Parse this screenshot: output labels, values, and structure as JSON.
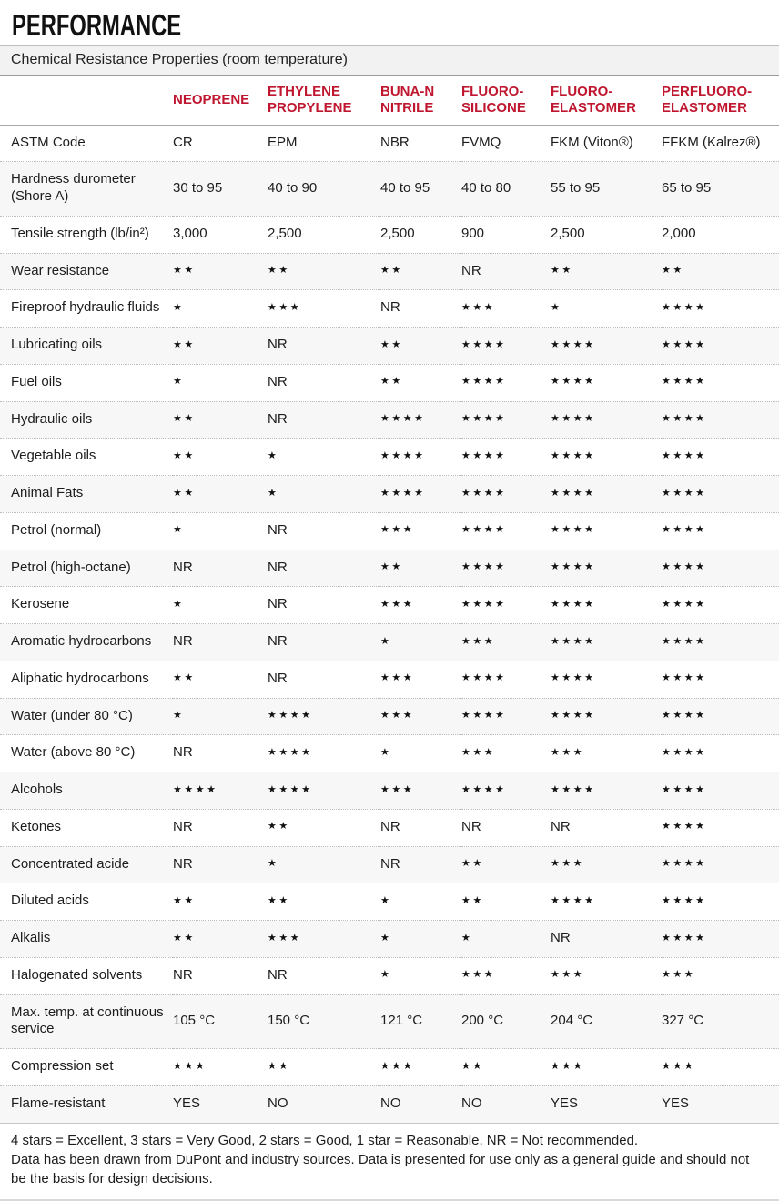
{
  "page": {
    "title": "PERFORMANCE",
    "subtitle": "Chemical Resistance Properties (room temperature)"
  },
  "colors": {
    "accent_red": "#c01730"
  },
  "table": {
    "columns": [
      "NEOPRENE",
      "ETHYLENE PROPYLENE",
      "BUNA-N NITRILE",
      "FLUORO-SILICONE",
      "FLUORO-ELASTOMER",
      "PERFLUORO-ELASTOMER"
    ],
    "rows": [
      {
        "label": "ASTM Code",
        "cells": [
          "CR",
          "EPM",
          "NBR",
          "FVMQ",
          "FKM (Viton®)",
          "FFKM (Kalrez®)"
        ]
      },
      {
        "label": "Hardness durometer (Shore A)",
        "cells": [
          "30 to 95",
          "40 to 90",
          "40 to 95",
          "40 to 80",
          "55 to 95",
          "65 to 95"
        ]
      },
      {
        "label": "Tensile strength (lb/in²)",
        "cells": [
          "3,000",
          "2,500",
          "2,500",
          "900",
          "2,500",
          "2,000"
        ]
      },
      {
        "label": "Wear resistance",
        "cells": [
          "★★",
          "★★",
          "★★",
          "NR",
          "★★",
          "★★"
        ]
      },
      {
        "label": "Fireproof hydraulic fluids",
        "cells": [
          "★",
          "★★★",
          "NR",
          "★★★",
          "★",
          "★★★★"
        ]
      },
      {
        "label": "Lubricating oils",
        "cells": [
          "★★",
          "NR",
          "★★",
          "★★★★",
          "★★★★",
          "★★★★"
        ]
      },
      {
        "label": "Fuel oils",
        "cells": [
          "★",
          "NR",
          "★★",
          "★★★★",
          "★★★★",
          "★★★★"
        ]
      },
      {
        "label": "Hydraulic oils",
        "cells": [
          "★★",
          "NR",
          "★★★★",
          "★★★★",
          "★★★★",
          "★★★★"
        ]
      },
      {
        "label": "Vegetable oils",
        "cells": [
          "★★",
          "★",
          "★★★★",
          "★★★★",
          "★★★★",
          "★★★★"
        ]
      },
      {
        "label": "Animal Fats",
        "cells": [
          "★★",
          "★",
          "★★★★",
          "★★★★",
          "★★★★",
          "★★★★"
        ]
      },
      {
        "label": "Petrol (normal)",
        "cells": [
          "★",
          "NR",
          "★★★",
          "★★★★",
          "★★★★",
          "★★★★"
        ]
      },
      {
        "label": "Petrol (high-octane)",
        "cells": [
          "NR",
          "NR",
          "★★",
          "★★★★",
          "★★★★",
          "★★★★"
        ]
      },
      {
        "label": "Kerosene",
        "cells": [
          "★",
          "NR",
          "★★★",
          "★★★★",
          "★★★★",
          "★★★★"
        ]
      },
      {
        "label": "Aromatic hydrocarbons",
        "cells": [
          "NR",
          "NR",
          "★",
          "★★★",
          "★★★★",
          "★★★★"
        ]
      },
      {
        "label": "Aliphatic hydrocarbons",
        "cells": [
          "★★",
          "NR",
          "★★★",
          "★★★★",
          "★★★★",
          "★★★★"
        ]
      },
      {
        "label": "Water (under 80 °C)",
        "cells": [
          "★",
          "★★★★",
          "★★★",
          "★★★★",
          "★★★★",
          "★★★★"
        ]
      },
      {
        "label": "Water (above 80 °C)",
        "cells": [
          "NR",
          "★★★★",
          "★",
          "★★★",
          "★★★",
          "★★★★"
        ]
      },
      {
        "label": "Alcohols",
        "cells": [
          "★★★★",
          "★★★★",
          "★★★",
          "★★★★",
          "★★★★",
          "★★★★"
        ]
      },
      {
        "label": "Ketones",
        "cells": [
          "NR",
          "★★",
          "NR",
          "NR",
          "NR",
          "★★★★"
        ]
      },
      {
        "label": "Concentrated acide",
        "cells": [
          "NR",
          "★",
          "NR",
          "★★",
          "★★★",
          "★★★★"
        ]
      },
      {
        "label": "Diluted acids",
        "cells": [
          "★★",
          "★★",
          "★",
          "★★",
          "★★★★",
          "★★★★"
        ]
      },
      {
        "label": "Alkalis",
        "cells": [
          "★★",
          "★★★",
          "★",
          "★",
          "NR",
          "★★★★"
        ]
      },
      {
        "label": "Halogenated solvents",
        "cells": [
          "NR",
          "NR",
          "★",
          "★★★",
          "★★★",
          "★★★"
        ]
      },
      {
        "label": "Max. temp. at continuous service",
        "cells": [
          "105 °C",
          "150 °C",
          "121 °C",
          "200 °C",
          "204 °C",
          "327 °C"
        ]
      },
      {
        "label": "Compression set",
        "cells": [
          "★★★",
          "★★",
          "★★★",
          "★★",
          "★★★",
          "★★★"
        ]
      },
      {
        "label": "Flame-resistant",
        "cells": [
          "YES",
          "NO",
          "NO",
          "NO",
          "YES",
          "YES"
        ]
      }
    ]
  },
  "footer": {
    "legend": "4 stars = Excellent, 3 stars = Very Good, 2 stars = Good, 1 star = Reasonable, NR = Not recommended.",
    "disclaimer": "Data has been drawn from DuPont and industry sources. Data is presented for use only as a general guide and should not be the basis for design decisions."
  }
}
